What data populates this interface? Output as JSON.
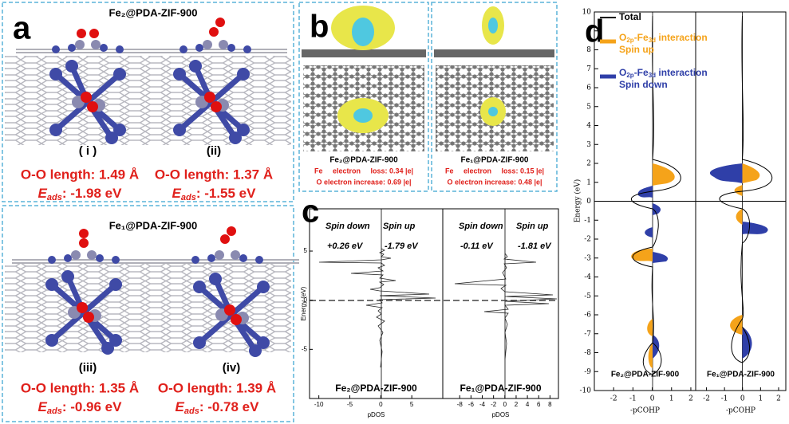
{
  "panel_a": {
    "label": "a",
    "energy_symbol": "E",
    "energy_subscript": "ads",
    "groups": [
      {
        "title": "Fe₂@PDA-ZIF-900",
        "structures": [
          {
            "id": "( i )",
            "length": "O-O length: 1.49 Å",
            "energy": ": -1.98 eV"
          },
          {
            "id": "(ii)",
            "length": "O-O length: 1.37 Å",
            "energy": ": -1.55 eV"
          }
        ]
      },
      {
        "title": "Fe₁@PDA-ZIF-900",
        "structures": [
          {
            "id": "(iii)",
            "length": "O-O length: 1.35 Å",
            "energy": ": -0.96 eV"
          },
          {
            "id": "(iv)",
            "length": "O-O length: 1.39 Å",
            "energy": ": -0.78 eV"
          }
        ]
      }
    ]
  },
  "panel_b": {
    "label": "b",
    "items": [
      {
        "name": "Fe₂@PDA-ZIF-900",
        "fe_line": "Fe     electron     loss: 0.34 |e|",
        "o_line": "O electron increase: 0.69 |e|"
      },
      {
        "name": "Fe₁@PDA-ZIF-900",
        "fe_line": "Fe     electron     loss: 0.15 |e|",
        "o_line": "O electron increase: 0.48 |e|"
      }
    ]
  },
  "panel_c": {
    "label": "c",
    "y_label": "Energy (eV)",
    "ylim": [
      -10,
      9.3
    ],
    "yticks": [
      -5,
      0,
      5
    ],
    "subplots": [
      {
        "name": "Fe₂@PDA-ZIF-900",
        "x_label": "pDOS",
        "xlim": [
          -11.5,
          10
        ],
        "xticks": [
          -10,
          -5,
          0,
          5
        ],
        "spin_down": "Spin down",
        "spin_up": "Spin up",
        "down_value": "+0.26 eV",
        "up_value": "-1.79 eV"
      },
      {
        "name": "Fe₁@PDA-ZIF-900",
        "x_label": "pDOS",
        "xlim": [
          -11,
          9.5
        ],
        "xticks": [
          -8,
          -6,
          -4,
          -2,
          0,
          2,
          4,
          6,
          8
        ],
        "spin_down": "Spin down",
        "spin_up": "Spin up",
        "down_value": "-0.11 eV",
        "up_value": "-1.81 eV"
      }
    ]
  },
  "panel_d": {
    "label": "d",
    "y_label": "Energy (eV)",
    "ylim": [
      -10,
      10
    ],
    "yticks": [
      -10,
      -9,
      -8,
      -7,
      -6,
      -5,
      -4,
      -3,
      -2,
      -1,
      0,
      1,
      2,
      3,
      4,
      5,
      6,
      7,
      8,
      9,
      10
    ],
    "legend": [
      {
        "name": "Total",
        "color": "#000000"
      },
      {
        "base": "O",
        "sub1": "2p",
        "mid": "-Fe",
        "sub2": "3d",
        "rest": " interaction",
        "line2": "Spin up",
        "color": "#f5a31a"
      },
      {
        "base": "O",
        "sub1": "2p",
        "mid": "-Fe",
        "sub2": "3d",
        "rest": " interaction",
        "line2": "Spin down",
        "color": "#2f3fa8"
      }
    ],
    "subplots": [
      {
        "name": "Fe₂@PDA-ZIF-900",
        "x_label": "-pCOHP",
        "xlim": [
          -3,
          2.25
        ],
        "xticks": [
          -2,
          -1,
          0,
          1,
          2
        ]
      },
      {
        "name": "Fe₁@PDA-ZIF-900",
        "x_label": "-pCOHP",
        "xlim": [
          -2.6,
          2.4
        ],
        "xticks": [
          -2,
          -1,
          0,
          1,
          2
        ]
      }
    ]
  }
}
